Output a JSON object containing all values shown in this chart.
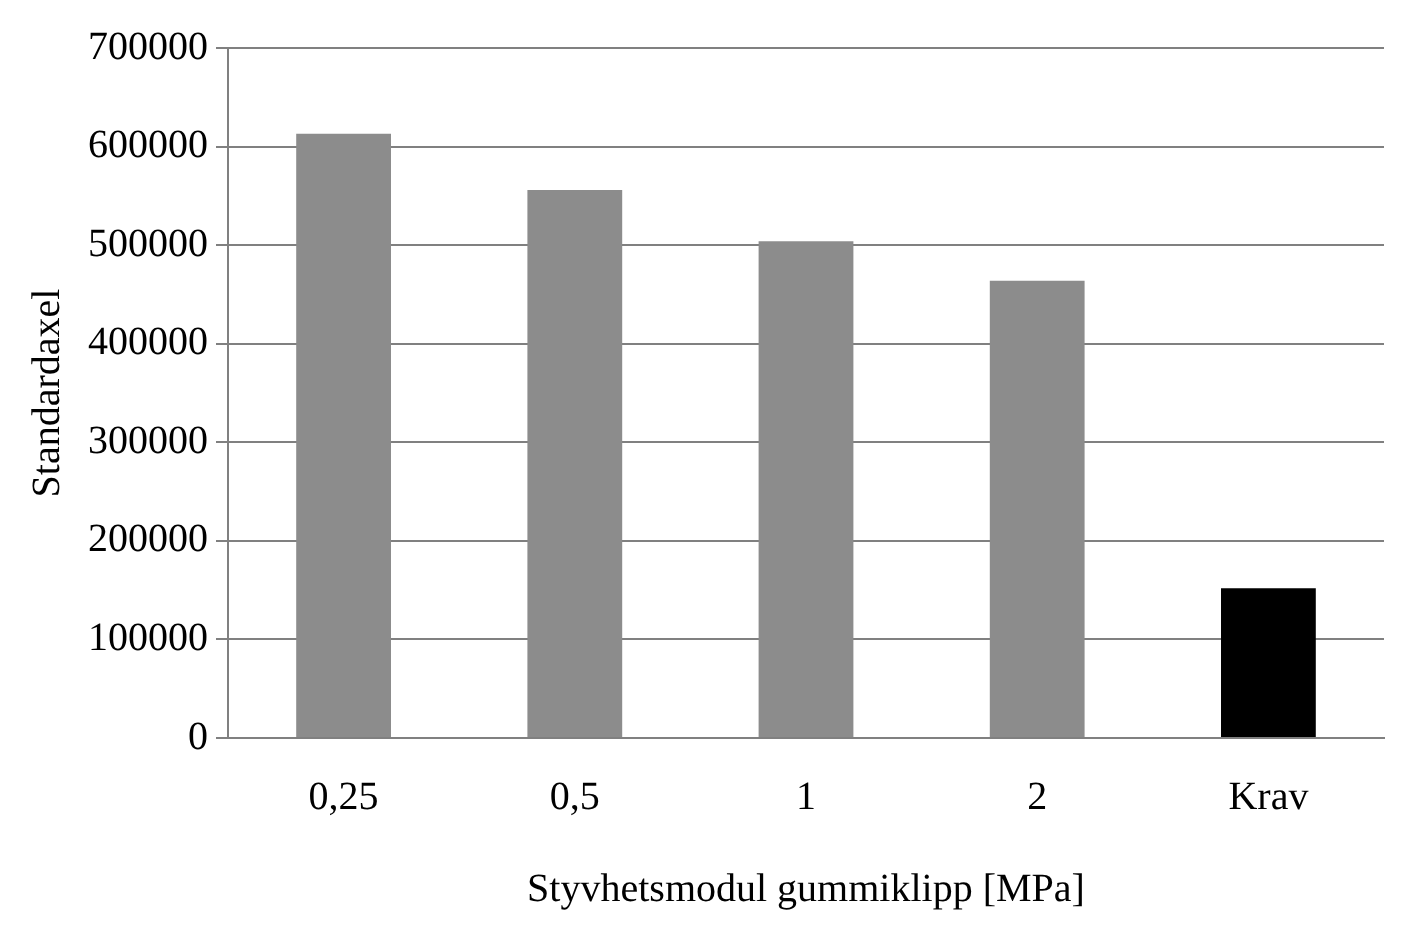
{
  "chart_data": {
    "type": "bar",
    "xlabel": "Styvhetsmodul gummiklipp [MPa]",
    "ylabel": "Standardaxel",
    "categories": [
      "0,25",
      "0,5",
      "1",
      "2",
      "Krav"
    ],
    "values": [
      613000,
      556000,
      504000,
      464000,
      152000
    ],
    "colors": [
      "#8c8c8c",
      "#8c8c8c",
      "#8c8c8c",
      "#8c8c8c",
      "#000000"
    ],
    "ylim": [
      0,
      700000
    ],
    "yticks": [
      0,
      100000,
      200000,
      300000,
      400000,
      500000,
      600000,
      700000
    ],
    "grid": "y",
    "legend": false
  }
}
